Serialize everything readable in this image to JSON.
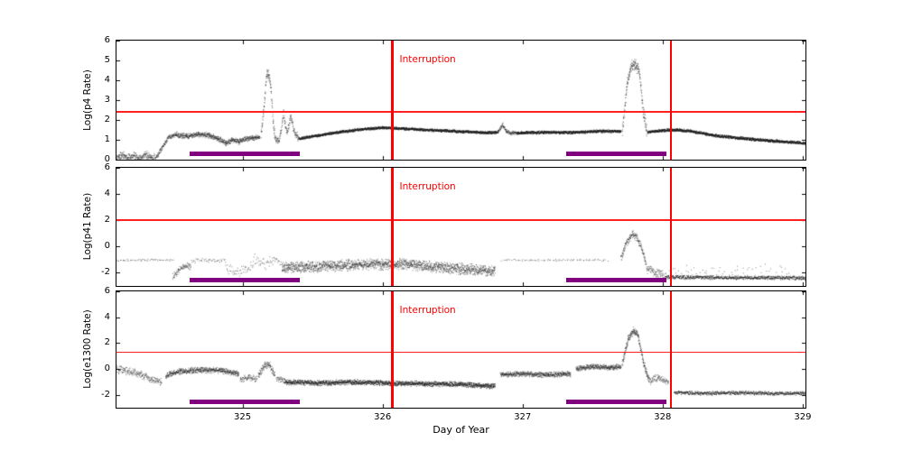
{
  "figure": {
    "xlabel": "Day of Year",
    "xlim": [
      324.1,
      329.02
    ],
    "xticks": [
      325,
      326,
      327,
      328,
      329
    ],
    "colors": {
      "threshold": "#ff2020",
      "interruption": "#ff0000",
      "bar": "#800080",
      "points": "#1c1c1c"
    }
  },
  "chart_data": [
    {
      "type": "scatter",
      "ylabel": "Log(p4 Rate)",
      "ylim": [
        0,
        6
      ],
      "yticks": [
        0,
        1,
        2,
        3,
        4,
        5,
        6
      ],
      "threshold_y": 2.4,
      "interruptions_x": [
        326.07,
        328.06
      ],
      "annotation": "Interruption",
      "bars": [
        [
          324.62,
          325.41
        ],
        [
          327.31,
          328.03
        ]
      ],
      "grid": false,
      "segments": [
        {
          "x": [
            324.1,
            324.14,
            324.18,
            324.22,
            324.26,
            324.3,
            324.34,
            324.38
          ],
          "y": [
            0.1,
            0.3,
            0.1,
            0.25,
            0.05,
            0.3,
            0.15,
            0.1
          ],
          "noise": 0.14,
          "density": 2,
          "step": 0.002
        },
        {
          "x": [
            324.38,
            324.43,
            324.47,
            324.52
          ],
          "y": [
            0.1,
            0.7,
            1.15,
            1.3
          ],
          "noise": 0.08,
          "density": 2,
          "step": 0.002
        },
        {
          "x": [
            324.52,
            324.6,
            324.68,
            324.76,
            324.82,
            324.88,
            324.92,
            324.97,
            325.02,
            325.07,
            325.12
          ],
          "y": [
            1.3,
            1.18,
            1.3,
            1.24,
            1.1,
            0.85,
            1.02,
            0.92,
            1.06,
            1.12,
            1.15
          ],
          "noise": 0.09,
          "density": 3,
          "step": 0.0025
        },
        {
          "x": [
            325.13,
            325.155,
            325.17,
            325.185,
            325.2,
            325.215,
            325.23
          ],
          "y": [
            1.3,
            3.0,
            4.35,
            4.3,
            3.6,
            2.0,
            1.15
          ],
          "noise": 0.18,
          "density": 2,
          "step": 0.0015
        },
        {
          "x": [
            325.23,
            325.26,
            325.29,
            325.315,
            325.34,
            325.37,
            325.4
          ],
          "y": [
            1.1,
            0.95,
            2.35,
            1.3,
            2.2,
            1.35,
            1.1
          ],
          "noise": 0.15,
          "density": 2,
          "step": 0.002
        },
        {
          "x": [
            325.4,
            325.55,
            325.7,
            325.85,
            326.0,
            326.15,
            326.35,
            326.55,
            326.75,
            326.82
          ],
          "y": [
            1.08,
            1.25,
            1.42,
            1.55,
            1.63,
            1.58,
            1.5,
            1.44,
            1.38,
            1.4
          ],
          "noise": 0.045,
          "density": 3,
          "step": 0.0025,
          "alpha": 0.85
        },
        {
          "x": [
            326.82,
            326.855,
            326.88,
            326.91,
            326.95
          ],
          "y": [
            1.42,
            1.8,
            1.45,
            1.35,
            1.38
          ],
          "noise": 0.07,
          "density": 2,
          "step": 0.002
        },
        {
          "x": [
            326.95,
            327.15,
            327.35,
            327.55,
            327.7
          ],
          "y": [
            1.36,
            1.4,
            1.38,
            1.46,
            1.44
          ],
          "noise": 0.05,
          "density": 3,
          "step": 0.0025,
          "alpha": 0.85
        },
        {
          "x": [
            327.71,
            327.745,
            327.775,
            327.8,
            327.83,
            327.86,
            327.885
          ],
          "y": [
            1.5,
            3.9,
            4.75,
            4.8,
            4.5,
            2.4,
            1.45
          ],
          "noise": 0.2,
          "density": 2,
          "step": 0.0015
        },
        {
          "x": [
            327.89,
            327.95,
            328.02,
            328.1,
            328.2,
            328.35,
            328.55,
            328.75,
            328.95,
            329.02
          ],
          "y": [
            1.42,
            1.45,
            1.5,
            1.52,
            1.45,
            1.25,
            1.1,
            0.98,
            0.88,
            0.85
          ],
          "noise": 0.05,
          "density": 3,
          "step": 0.0025,
          "alpha": 0.85
        }
      ]
    },
    {
      "type": "scatter",
      "ylabel": "Log(p41 Rate)",
      "ylim": [
        -3,
        6
      ],
      "yticks": [
        -2,
        0,
        2,
        4,
        6
      ],
      "threshold_y": 2.0,
      "interruptions_x": [
        326.07,
        328.06
      ],
      "annotation": "Interruption",
      "bars": [
        [
          324.62,
          325.41
        ],
        [
          327.31,
          328.03
        ]
      ],
      "grid": false,
      "segments": [
        {
          "x": [
            324.1,
            324.3,
            324.5
          ],
          "y": [
            -1.0,
            -1.0,
            -1.0
          ],
          "noise": 0.06,
          "density": 1,
          "step": 0.008
        },
        {
          "x": [
            324.5,
            324.54,
            324.58,
            324.63
          ],
          "y": [
            -2.3,
            -1.8,
            -1.45,
            -1.55
          ],
          "noise": 0.18,
          "density": 2,
          "step": 0.003
        },
        {
          "x": [
            324.63,
            324.75,
            324.88
          ],
          "y": [
            -1.05,
            -1.0,
            -1.05
          ],
          "noise": 0.1,
          "density": 1,
          "step": 0.006
        },
        {
          "x": [
            324.88,
            324.95,
            325.02,
            325.08
          ],
          "y": [
            -1.6,
            -1.9,
            -1.7,
            -1.4
          ],
          "noise": 0.25,
          "density": 1,
          "step": 0.004
        },
        {
          "x": [
            325.08,
            325.15,
            325.22,
            325.28
          ],
          "y": [
            -1.0,
            -1.3,
            -0.95,
            -1.25
          ],
          "noise": 0.3,
          "density": 1,
          "step": 0.004
        },
        {
          "x": [
            325.28,
            325.45,
            325.62,
            325.8,
            326.0,
            326.2,
            326.4,
            326.6,
            326.8
          ],
          "y": [
            -1.55,
            -1.5,
            -1.45,
            -1.35,
            -1.3,
            -1.35,
            -1.55,
            -1.7,
            -1.8
          ],
          "noise": 0.28,
          "density": 3,
          "step": 0.0025
        },
        {
          "x": [
            326.85,
            327.05,
            327.25,
            327.45,
            327.6
          ],
          "y": [
            -1.0,
            -1.0,
            -1.0,
            -1.0,
            -1.0
          ],
          "noise": 0.05,
          "density": 1,
          "step": 0.01
        },
        {
          "x": [
            327.7,
            327.74,
            327.78,
            327.81,
            327.85,
            327.88
          ],
          "y": [
            -0.8,
            0.3,
            0.95,
            0.8,
            -0.2,
            -1.2
          ],
          "noise": 0.22,
          "density": 2,
          "step": 0.002
        },
        {
          "x": [
            327.88,
            327.95,
            328.02
          ],
          "y": [
            -1.6,
            -2.0,
            -2.2
          ],
          "noise": 0.25,
          "density": 2,
          "step": 0.003
        },
        {
          "x": [
            328.02,
            328.25,
            328.5,
            328.75,
            329.02
          ],
          "y": [
            -2.3,
            -2.32,
            -2.35,
            -2.33,
            -2.38
          ],
          "noise": 0.1,
          "density": 2,
          "step": 0.003,
          "alpha": 0.75
        },
        {
          "x": [
            328.05,
            328.3,
            328.6,
            328.9
          ],
          "y": [
            -1.7,
            -1.8,
            -1.9,
            -1.85
          ],
          "noise": 0.35,
          "density": 1,
          "step": 0.015
        }
      ]
    },
    {
      "type": "scatter",
      "ylabel": "Log(e1300 Rate)",
      "ylim": [
        -3,
        6
      ],
      "yticks": [
        -2,
        0,
        2,
        4,
        6
      ],
      "threshold_y": 1.3,
      "interruptions_x": [
        326.07,
        328.06
      ],
      "annotation": "Interruption",
      "bars": [
        [
          324.62,
          325.41
        ],
        [
          327.31,
          328.03
        ]
      ],
      "grid": false,
      "segments": [
        {
          "x": [
            324.1,
            324.18,
            324.27,
            324.35,
            324.42
          ],
          "y": [
            0.0,
            -0.15,
            -0.4,
            -0.8,
            -1.0
          ],
          "noise": 0.2,
          "density": 2,
          "step": 0.003
        },
        {
          "x": [
            324.45,
            324.55,
            324.7,
            324.85,
            324.97
          ],
          "y": [
            -0.5,
            -0.15,
            -0.05,
            -0.1,
            -0.35
          ],
          "noise": 0.15,
          "density": 3,
          "step": 0.0025
        },
        {
          "x": [
            324.98,
            325.04,
            325.1
          ],
          "y": [
            -0.8,
            -0.6,
            -0.75
          ],
          "noise": 0.18,
          "density": 2,
          "step": 0.003
        },
        {
          "x": [
            325.11,
            325.15,
            325.19,
            325.23
          ],
          "y": [
            -0.5,
            0.25,
            0.35,
            -0.5
          ],
          "noise": 0.2,
          "density": 2,
          "step": 0.002
        },
        {
          "x": [
            325.24,
            325.3
          ],
          "y": [
            -0.75,
            -0.9
          ],
          "noise": 0.15,
          "density": 2,
          "step": 0.003
        },
        {
          "x": [
            325.3,
            325.55,
            325.8,
            326.05,
            326.3,
            326.55,
            326.8
          ],
          "y": [
            -1.0,
            -1.05,
            -1.0,
            -1.08,
            -1.12,
            -1.15,
            -1.3
          ],
          "noise": 0.14,
          "density": 3,
          "step": 0.0025,
          "alpha": 0.7
        },
        {
          "x": [
            326.84,
            327.0,
            327.18,
            327.34
          ],
          "y": [
            -0.4,
            -0.35,
            -0.42,
            -0.35
          ],
          "noise": 0.14,
          "density": 3,
          "step": 0.0025
        },
        {
          "x": [
            327.38,
            327.5,
            327.62,
            327.7
          ],
          "y": [
            0.05,
            0.2,
            0.15,
            0.2
          ],
          "noise": 0.14,
          "density": 3,
          "step": 0.0025
        },
        {
          "x": [
            327.71,
            327.75,
            327.79,
            327.82,
            327.86,
            327.9
          ],
          "y": [
            0.5,
            2.3,
            3.0,
            2.7,
            0.5,
            -0.8
          ],
          "noise": 0.2,
          "density": 2,
          "step": 0.0015
        },
        {
          "x": [
            327.9,
            327.97,
            328.04
          ],
          "y": [
            -0.9,
            -0.65,
            -1.05
          ],
          "noise": 0.2,
          "density": 2,
          "step": 0.003
        },
        {
          "x": [
            328.08,
            328.3,
            328.55,
            328.8,
            329.02
          ],
          "y": [
            -1.8,
            -1.85,
            -1.8,
            -1.87,
            -1.85
          ],
          "noise": 0.1,
          "density": 2,
          "step": 0.003,
          "alpha": 0.75
        }
      ]
    }
  ]
}
